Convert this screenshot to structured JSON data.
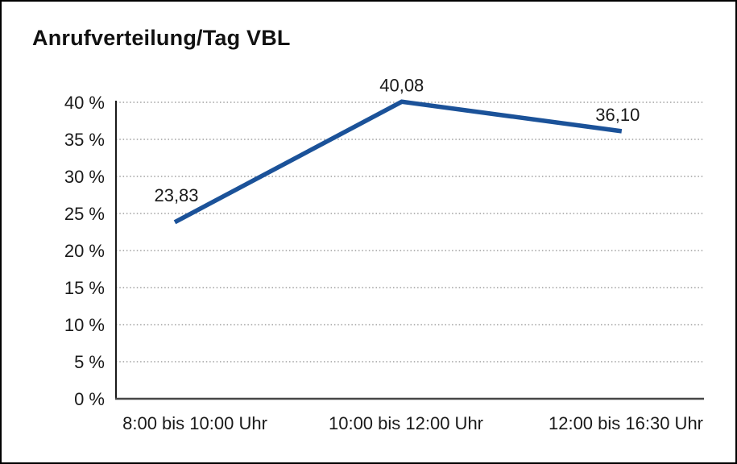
{
  "title": "Anrufverteilung/Tag VBL",
  "chart_data": {
    "type": "line",
    "title": "Anrufverteilung/Tag VBL",
    "categories": [
      "8:00 bis 10:00 Uhr",
      "10:00 bis 12:00 Uhr",
      "12:00 bis 16:30 Uhr"
    ],
    "series": [
      {
        "name": "Anrufverteilung/Tag VBL",
        "values": [
          23.83,
          40.08,
          36.1
        ]
      }
    ],
    "point_labels": [
      "23,83",
      "40,08",
      "36,10"
    ],
    "y_ticks": [
      "0 %",
      "5 %",
      "10 %",
      "15 %",
      "20 %",
      "25 %",
      "30 %",
      "35 %",
      "40 %"
    ],
    "y_tick_values": [
      0,
      5,
      10,
      15,
      20,
      25,
      30,
      35,
      40
    ],
    "ylim": [
      0,
      40
    ],
    "xlabel": "",
    "ylabel": "",
    "grid": "horizontal-dotted",
    "legend": "none",
    "markers": "none",
    "colors": {
      "line": "#1b5299",
      "y_axis": "#1a1a1a",
      "x_axis": "#474747",
      "gridline": "#8c8c8c",
      "text": "#1a1a1a",
      "background": "#ffffff",
      "frame_border": "#000000"
    }
  }
}
